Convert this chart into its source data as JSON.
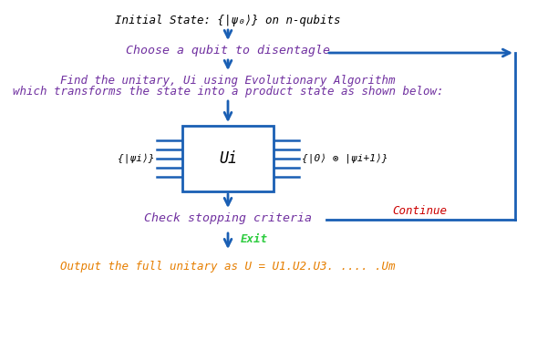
{
  "title_text": "Initial State: {|ψ₀⟩} on n-qubits",
  "step1_text": "Choose a qubit to disentagle",
  "step2_line1": "Find the unitary, Ui using Evolutionary Algorithm",
  "step2_line2": "which transforms the state into a product state as shown below:",
  "box_label": "Ui",
  "box_left_label": "{|ψi⟩}",
  "box_right_label": "{|0⟩ ⊗ |ψi+1⟩}",
  "step3_text": "Check stopping criteria",
  "exit_text": "Exit",
  "continue_text": "Continue",
  "output_text": "Output the full unitary as U = U1.U2.U3. .... .Um",
  "arrow_color": "#1a5fb4",
  "title_color": "#000000",
  "step1_color": "#7030a0",
  "step2_color": "#7030a0",
  "box_color": "#1a5fb4",
  "step3_color": "#7030a0",
  "exit_color": "#2ecc40",
  "continue_color": "#cc0000",
  "output_color": "#e67e00",
  "bg_color": "#ffffff",
  "figsize": [
    6.12,
    3.84
  ],
  "dpi": 100
}
